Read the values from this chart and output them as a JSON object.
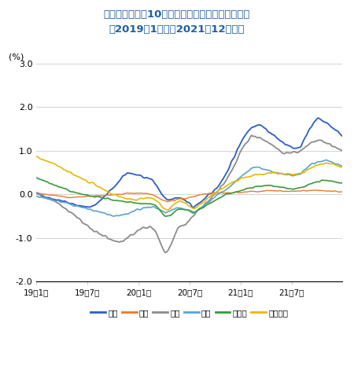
{
  "title_line1": "＜主要先進国の10年国債円ヘッジ後利回り推移＞",
  "title_line2": "（2019年1月初～2021年12月末）",
  "ylabel": "(%)",
  "ylim": [
    -2.0,
    3.0
  ],
  "yticks": [
    -2.0,
    -1.0,
    0.0,
    1.0,
    2.0,
    3.0
  ],
  "xtick_labels": [
    "19年1月",
    "19年7月",
    "20年1月",
    "20年7月",
    "21年1月",
    "21年7月"
  ],
  "title_color": "#1F5FA6",
  "legend_entries": [
    "豪州",
    "日本",
    "米国",
    "英国",
    "ドイツ",
    "フランス"
  ],
  "line_colors": [
    "#2B5FC4",
    "#E87A2D",
    "#8C8C8C",
    "#5BA3D0",
    "#3A9A3A",
    "#E8B800"
  ],
  "background_color": "#FFFFFF",
  "n_points": 750
}
